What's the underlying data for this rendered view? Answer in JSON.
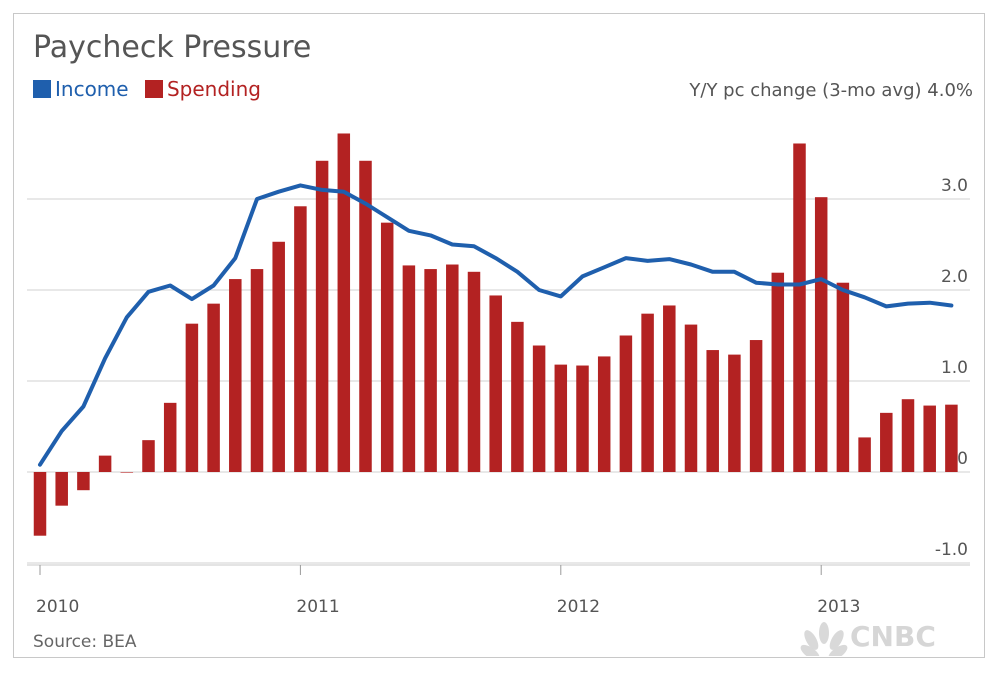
{
  "chart_data": {
    "type": "bar",
    "title": "Paycheck Pressure",
    "subtitle": "Y/Y pc change (3-mo avg) 4.0%",
    "source": "Source: BEA",
    "brand": "CNBC",
    "legend_position": "top-left",
    "grid": true,
    "ylim": [
      -1.0,
      4.0
    ],
    "y_ticks": [
      "3.0",
      "2.0",
      "1.0",
      "0",
      "-1.0"
    ],
    "y_tick_values": [
      3.0,
      2.0,
      1.0,
      0,
      -1.0
    ],
    "x_ticks": [
      "2010",
      "2011",
      "2012",
      "2013"
    ],
    "x_tick_index": [
      0,
      12,
      24,
      36
    ],
    "series": [
      {
        "name": "Income",
        "type": "line",
        "color": "#1f5fad",
        "values": [
          0.08,
          0.45,
          0.72,
          1.25,
          1.7,
          1.98,
          2.05,
          1.9,
          2.05,
          2.35,
          3.0,
          3.08,
          3.15,
          3.1,
          3.08,
          2.95,
          2.8,
          2.65,
          2.6,
          2.5,
          2.48,
          2.35,
          2.2,
          2.0,
          1.93,
          2.15,
          2.25,
          2.35,
          2.32,
          2.34,
          2.28,
          2.2,
          2.2,
          2.08,
          2.06,
          2.06,
          2.12,
          2.0,
          1.92,
          1.82,
          1.85,
          1.86,
          1.83
        ]
      },
      {
        "name": "Spending",
        "type": "bar",
        "color": "#b32222",
        "values": [
          -0.7,
          -0.37,
          -0.2,
          0.18,
          0.0,
          0.35,
          0.76,
          1.63,
          1.85,
          2.12,
          2.23,
          2.53,
          2.92,
          3.42,
          3.72,
          3.42,
          2.74,
          2.27,
          2.23,
          2.28,
          2.2,
          1.94,
          1.65,
          1.39,
          1.18,
          1.17,
          1.27,
          1.5,
          1.74,
          1.83,
          1.62,
          1.34,
          1.29,
          1.45,
          2.19,
          3.61,
          3.02,
          2.08,
          0.38,
          0.65,
          0.8,
          0.73,
          0.74
        ]
      }
    ]
  }
}
